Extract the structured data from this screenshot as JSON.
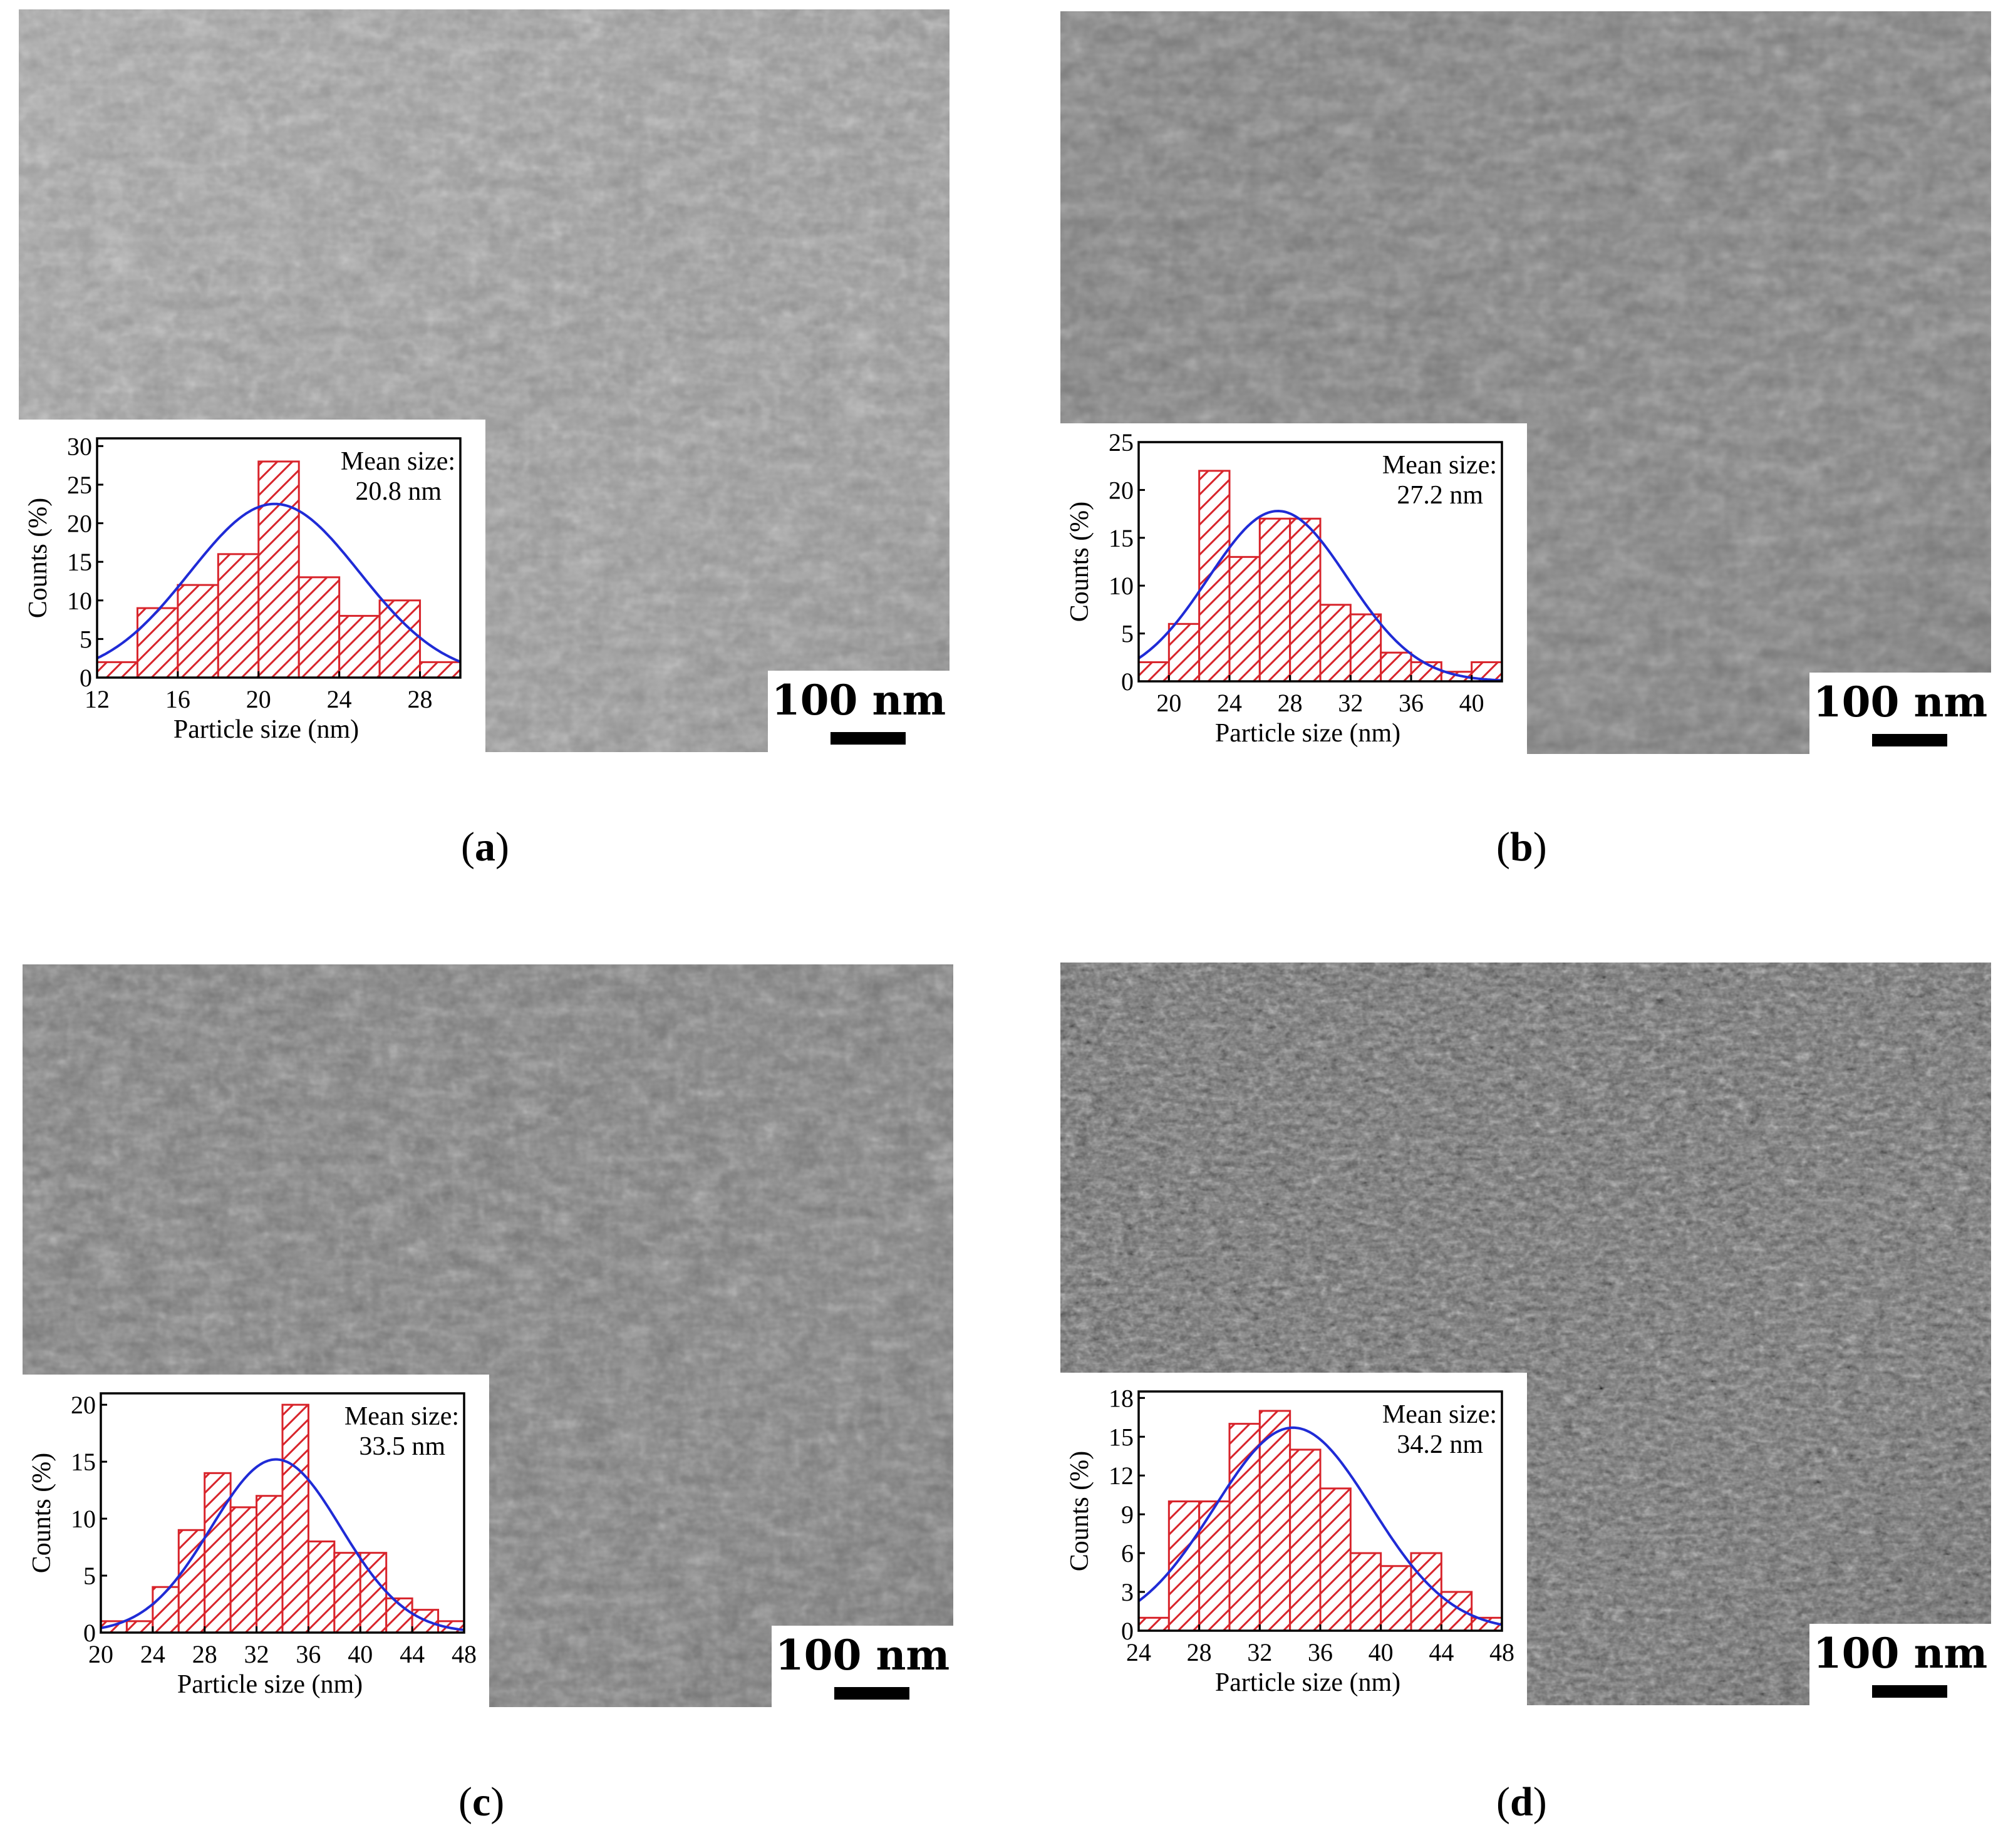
{
  "panels": [
    {
      "id": "a",
      "caption_letter": "a",
      "scale_label": "100 nm",
      "mean_label": "Mean size:",
      "mean_value": "20.8 nm",
      "chart_data": {
        "type": "bar",
        "xlabel": "Particle size (nm)",
        "ylabel": "Counts (%)",
        "xlim": [
          12,
          30
        ],
        "ylim": [
          0,
          31
        ],
        "xticks": [
          12,
          16,
          20,
          24,
          28
        ],
        "yticks": [
          0,
          5,
          10,
          15,
          20,
          25,
          30
        ],
        "bin_width": 2,
        "bin_starts": [
          12,
          14,
          16,
          18,
          20,
          22,
          24,
          26,
          28
        ],
        "values": [
          2,
          9,
          12,
          16,
          28,
          13,
          8,
          10,
          2
        ],
        "fit": {
          "type": "gaussian",
          "mean": 20.8,
          "sigma": 4.2,
          "peak": 22.5
        }
      }
    },
    {
      "id": "b",
      "caption_letter": "b",
      "scale_label": "100 nm",
      "mean_label": "Mean size:",
      "mean_value": "27.2 nm",
      "chart_data": {
        "type": "bar",
        "xlabel": "Particle size (nm)",
        "ylabel": "Counts (%)",
        "xlim": [
          18,
          42
        ],
        "ylim": [
          0,
          25
        ],
        "xticks": [
          20,
          24,
          28,
          32,
          36,
          40
        ],
        "yticks": [
          0,
          5,
          10,
          15,
          20,
          25
        ],
        "bin_width": 2,
        "bin_starts": [
          18,
          20,
          22,
          24,
          26,
          28,
          30,
          32,
          34,
          36,
          38,
          40
        ],
        "values": [
          2,
          6,
          22,
          13,
          17,
          17,
          8,
          7,
          3,
          2,
          1,
          2
        ],
        "fit": {
          "type": "gaussian",
          "mean": 27.2,
          "sigma": 4.6,
          "peak": 17.8
        }
      }
    },
    {
      "id": "c",
      "caption_letter": "c",
      "scale_label": "100 nm",
      "mean_label": "Mean size:",
      "mean_value": "33.5 nm",
      "chart_data": {
        "type": "bar",
        "xlabel": "Particle size (nm)",
        "ylabel": "Counts (%)",
        "xlim": [
          20,
          48
        ],
        "ylim": [
          0,
          21
        ],
        "xticks": [
          20,
          24,
          28,
          32,
          36,
          40,
          44,
          48
        ],
        "yticks": [
          0,
          5,
          10,
          15,
          20
        ],
        "bin_width": 2,
        "bin_starts": [
          20,
          22,
          24,
          26,
          28,
          30,
          32,
          34,
          36,
          38,
          40,
          42,
          44,
          46
        ],
        "values": [
          1,
          1,
          4,
          9,
          14,
          11,
          12,
          20,
          8,
          7,
          7,
          3,
          2,
          1
        ],
        "fit": {
          "type": "gaussian",
          "mean": 33.5,
          "sigma": 5.0,
          "peak": 15.2
        }
      }
    },
    {
      "id": "d",
      "caption_letter": "d",
      "scale_label": "100 nm",
      "mean_label": "Mean size:",
      "mean_value": "34.2 nm",
      "chart_data": {
        "type": "bar",
        "xlabel": "Particle size (nm)",
        "ylabel": "Counts (%)",
        "xlim": [
          24,
          48
        ],
        "ylim": [
          0,
          18.5
        ],
        "xticks": [
          24,
          28,
          32,
          36,
          40,
          44,
          48
        ],
        "yticks": [
          0,
          3,
          6,
          9,
          12,
          15,
          18
        ],
        "bin_width": 2,
        "bin_starts": [
          24,
          26,
          28,
          30,
          32,
          34,
          36,
          38,
          40,
          42,
          44,
          46
        ],
        "values": [
          1,
          10,
          10,
          16,
          17,
          14,
          11,
          6,
          5,
          6,
          3,
          1
        ],
        "fit": {
          "type": "gaussian",
          "mean": 34.2,
          "sigma": 5.2,
          "peak": 15.7
        }
      }
    }
  ]
}
